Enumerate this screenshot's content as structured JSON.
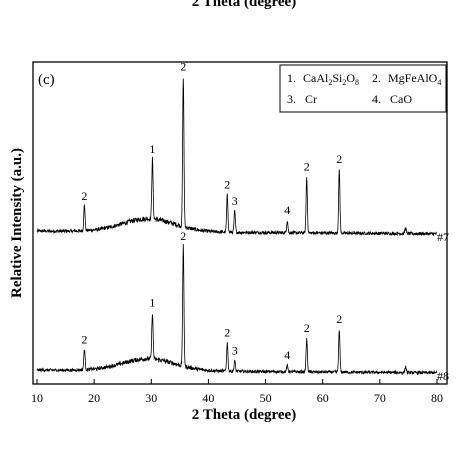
{
  "top_caption": "2 Theta (degree)",
  "chart_data": {
    "type": "line",
    "panel_label": "(c)",
    "xlabel": "2 Theta (degree)",
    "ylabel": "Relative Intensity (a.u.)",
    "xlim": [
      10,
      80
    ],
    "xticks": [
      "10",
      "20",
      "30",
      "40",
      "50",
      "60",
      "70",
      "80"
    ],
    "y_ticks_shown": false,
    "grid": false,
    "legend_position": "top-right",
    "legend": [
      {
        "number": "1.",
        "phase": "CaAl",
        "s1": "2",
        "m1": "Si",
        "s2": "2",
        "m2": "O",
        "s3": "8"
      },
      {
        "number": "2.",
        "phase": "MgFeAlO",
        "s1": "4",
        "m1": "",
        "s2": "",
        "m2": "",
        "s3": ""
      },
      {
        "number": "3.",
        "phase": "Cr",
        "s1": "",
        "m1": "",
        "s2": "",
        "m2": "",
        "s3": ""
      },
      {
        "number": "4.",
        "phase": "CaO",
        "s1": "",
        "m1": "",
        "s2": "",
        "m2": "",
        "s3": ""
      }
    ],
    "series": [
      {
        "name": "#7",
        "peaks": [
          {
            "x": 18.3,
            "height": 0.17,
            "label": "2"
          },
          {
            "x": 30.2,
            "height": 0.4,
            "label": "1"
          },
          {
            "x": 35.6,
            "height": 1.0,
            "label": "2"
          },
          {
            "x": 43.3,
            "height": 0.25,
            "label": "2"
          },
          {
            "x": 44.6,
            "height": 0.14,
            "label": "3"
          },
          {
            "x": 53.8,
            "height": 0.08,
            "label": "4"
          },
          {
            "x": 57.2,
            "height": 0.37,
            "label": "2"
          },
          {
            "x": 62.9,
            "height": 0.42,
            "label": "2"
          },
          {
            "x": 74.5,
            "height": 0.04,
            "label": ""
          }
        ]
      },
      {
        "name": "#8",
        "peaks": [
          {
            "x": 18.3,
            "height": 0.14,
            "label": "2"
          },
          {
            "x": 30.2,
            "height": 0.31,
            "label": "1"
          },
          {
            "x": 35.6,
            "height": 0.8,
            "label": "2"
          },
          {
            "x": 43.3,
            "height": 0.19,
            "label": "2"
          },
          {
            "x": 44.6,
            "height": 0.07,
            "label": "3"
          },
          {
            "x": 53.8,
            "height": 0.04,
            "label": "4"
          },
          {
            "x": 57.2,
            "height": 0.22,
            "label": "2"
          },
          {
            "x": 62.9,
            "height": 0.28,
            "label": "2"
          },
          {
            "x": 74.5,
            "height": 0.04,
            "label": ""
          }
        ]
      }
    ]
  }
}
